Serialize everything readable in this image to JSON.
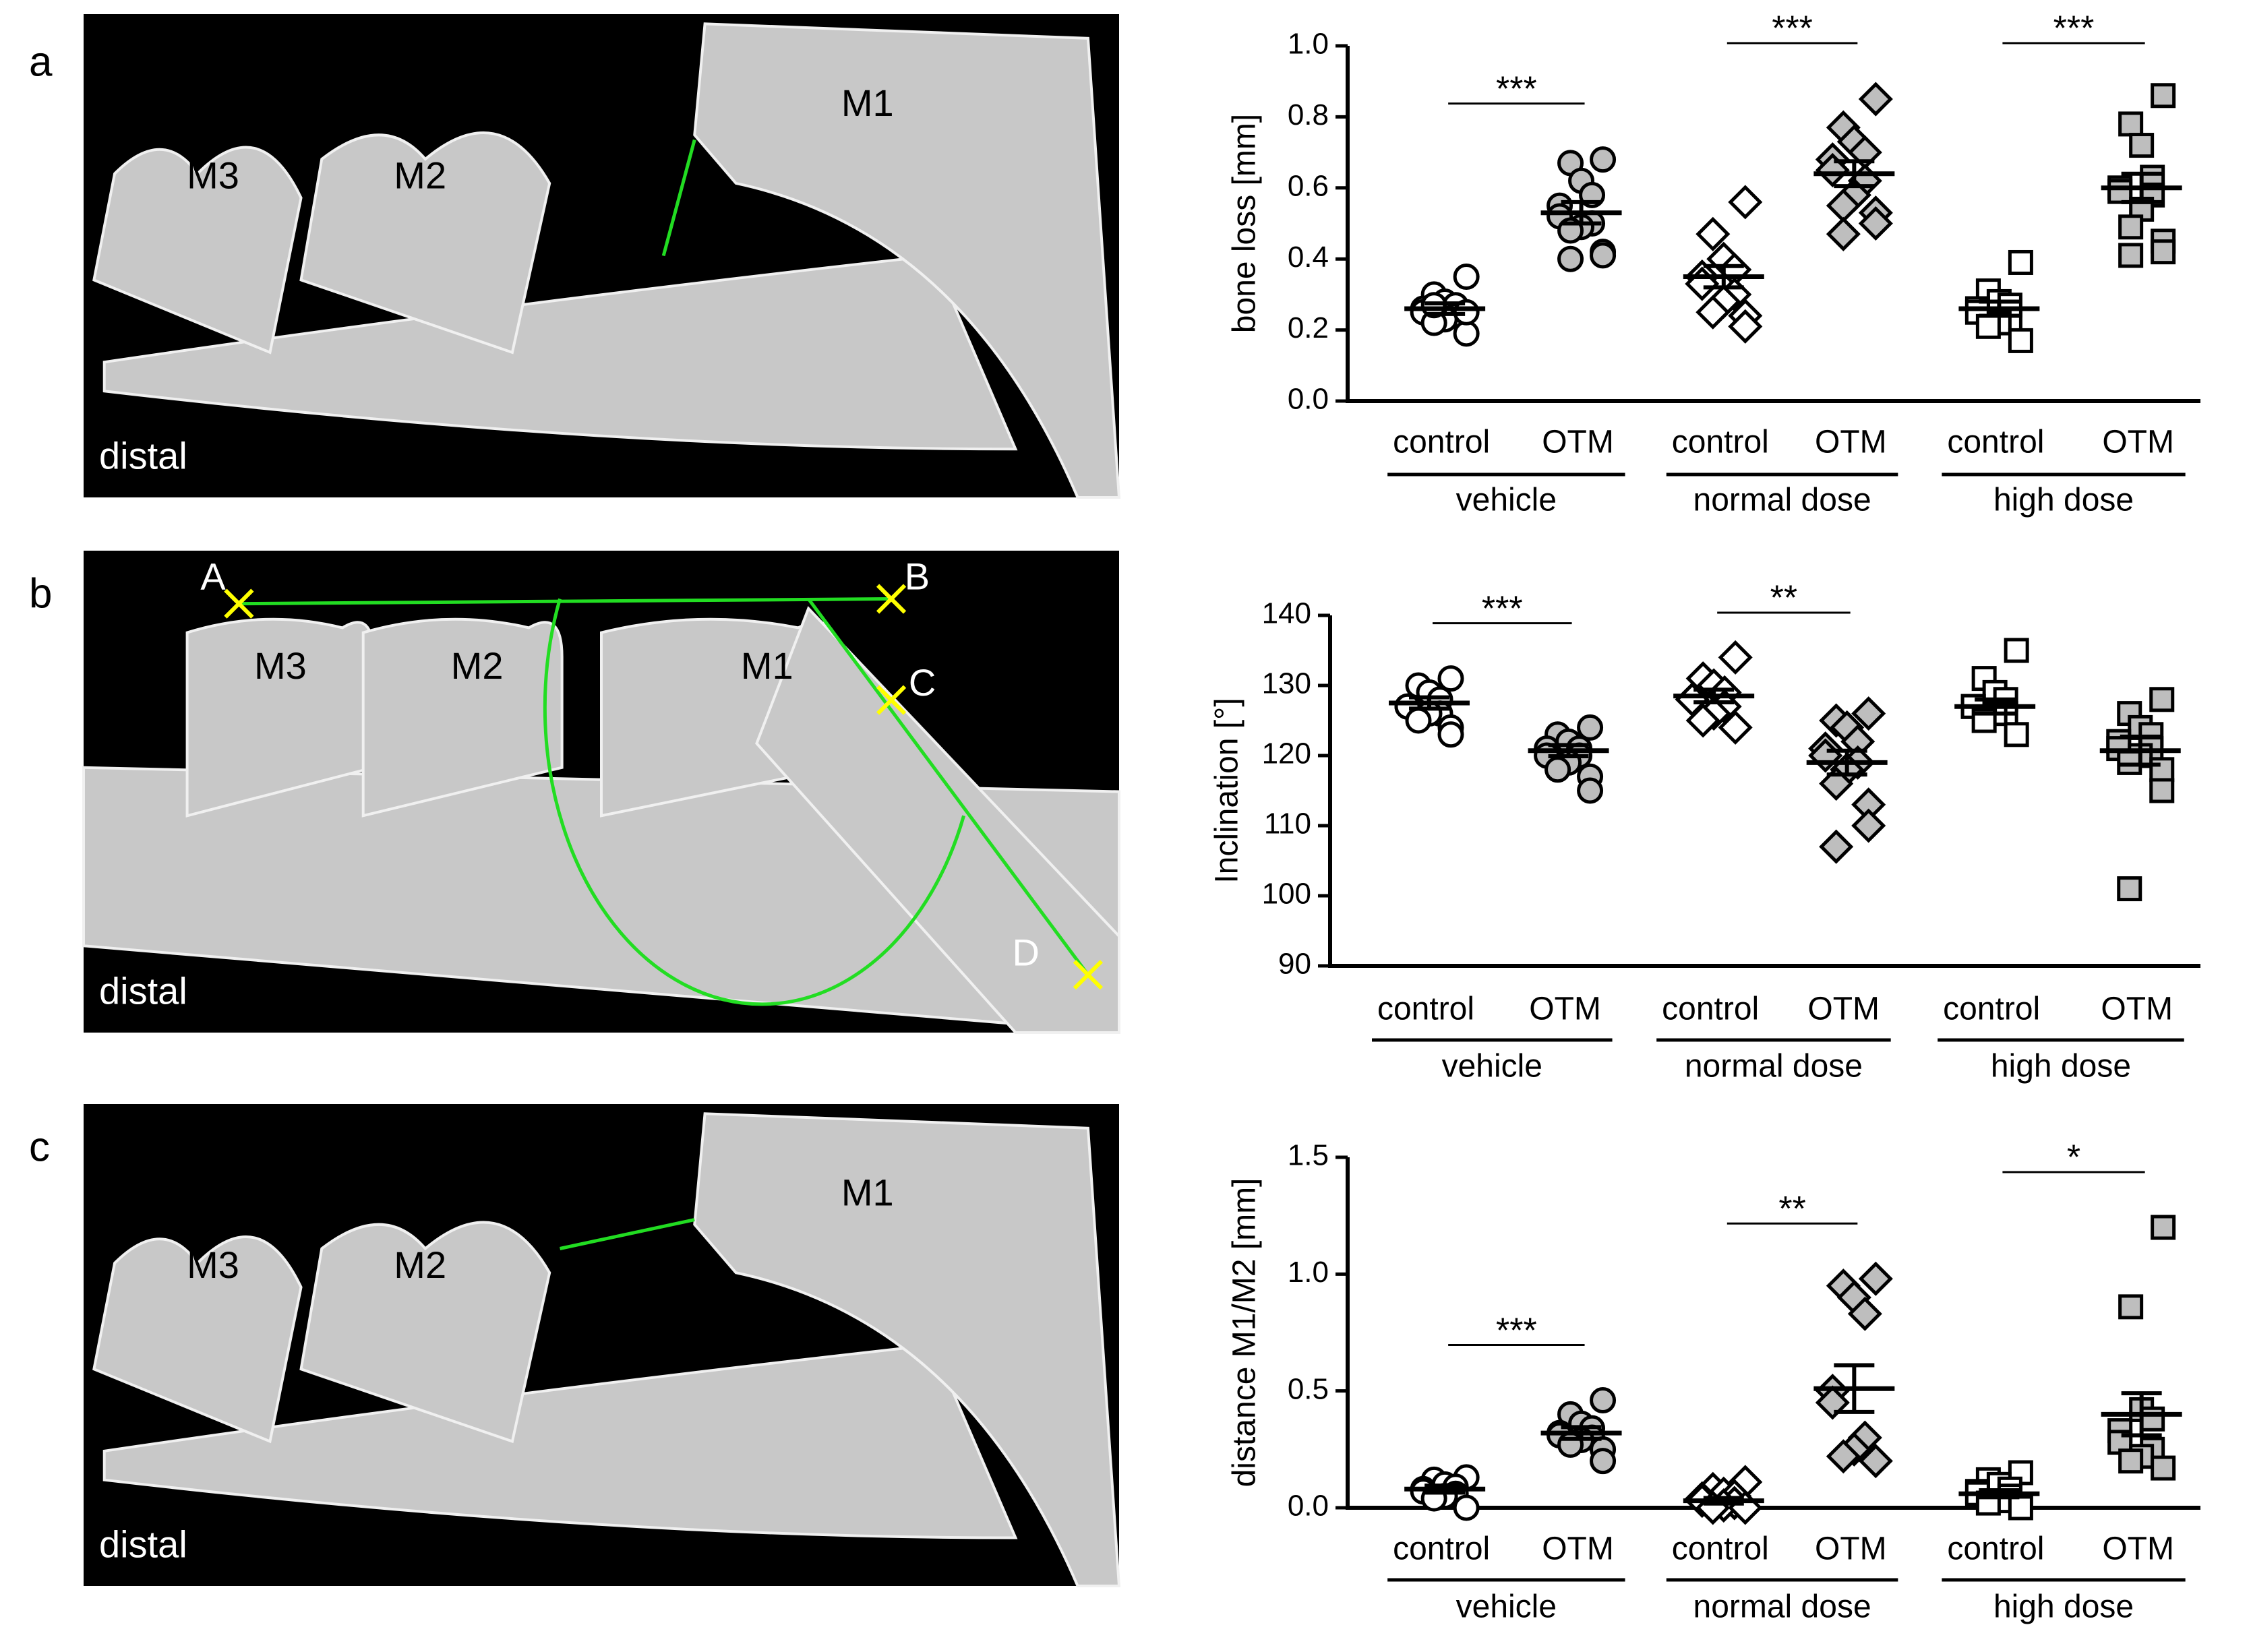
{
  "figure": {
    "panels": [
      {
        "label": "a",
        "labels": [
          "M3",
          "M2",
          "M1"
        ],
        "caption": "distal"
      },
      {
        "label": "b",
        "labels": [
          "M3",
          "M2",
          "M1",
          "A",
          "B",
          "C",
          "D"
        ],
        "caption": "distal"
      },
      {
        "label": "c",
        "labels": [
          "M3",
          "M2",
          "M1"
        ],
        "caption": "distal"
      }
    ]
  },
  "chart_data": [
    {
      "type": "scatter",
      "ylabel": "bone loss [mm]",
      "categories": [
        "control",
        "OTM",
        "control",
        "OTM",
        "control",
        "OTM"
      ],
      "groups": [
        "vehicle",
        "normal dose",
        "high dose"
      ],
      "markers": [
        "circle",
        "diamond",
        "square"
      ],
      "colors": [
        "#ffffff",
        "#bebebe",
        "#ffffff",
        "#bebebe",
        "#ffffff",
        "#bebebe"
      ],
      "ylim": [
        0,
        1
      ],
      "yticks": [
        {
          "value": 0,
          "label": "0.0"
        },
        0.2,
        0.4,
        0.6,
        0.8,
        {
          "value": 1,
          "label": "1.0"
        }
      ],
      "values": [
        [
          0.35,
          0.3,
          0.28,
          0.27,
          0.26,
          0.25,
          0.24,
          0.23,
          0.22,
          0.19,
          0.25,
          0.27
        ],
        [
          0.68,
          0.67,
          0.62,
          0.58,
          0.55,
          0.52,
          0.5,
          0.49,
          0.48,
          0.42,
          0.41,
          0.4
        ],
        [
          0.56,
          0.47,
          0.4,
          0.37,
          0.35,
          0.33,
          0.3,
          0.28,
          0.25,
          0.24,
          0.21
        ],
        [
          0.85,
          0.77,
          0.73,
          0.7,
          0.68,
          0.65,
          0.62,
          0.58,
          0.55,
          0.53,
          0.5,
          0.47
        ],
        [
          0.39,
          0.31,
          0.28,
          0.27,
          0.26,
          0.25,
          0.23,
          0.22,
          0.21,
          0.17
        ],
        [
          0.86,
          0.78,
          0.72,
          0.63,
          0.6,
          0.59,
          0.58,
          0.54,
          0.49,
          0.45,
          0.42,
          0.41
        ]
      ],
      "means": [
        0.26,
        0.53,
        0.35,
        0.64,
        0.26,
        0.6
      ],
      "errors": [
        0.015,
        0.03,
        0.03,
        0.035,
        0.02,
        0.04
      ],
      "significance": [
        "***",
        "***",
        "***"
      ]
    },
    {
      "type": "scatter",
      "ylabel": "Inclination [°]",
      "categories": [
        "control",
        "OTM",
        "control",
        "OTM",
        "control",
        "OTM"
      ],
      "groups": [
        "vehicle",
        "normal dose",
        "high dose"
      ],
      "markers": [
        "circle",
        "diamond",
        "square"
      ],
      "colors": [
        "#ffffff",
        "#bebebe",
        "#ffffff",
        "#bebebe",
        "#ffffff",
        "#bebebe"
      ],
      "ylim": [
        90,
        140
      ],
      "yticks": [
        90,
        100,
        110,
        120,
        130,
        140
      ],
      "values": [
        [
          131,
          130,
          129,
          128,
          127,
          127,
          126,
          126,
          125,
          124,
          123
        ],
        [
          124,
          123,
          122,
          121,
          121,
          120,
          120,
          119,
          118,
          117,
          115
        ],
        [
          134,
          131,
          130,
          129,
          128,
          128,
          127,
          126,
          125,
          124
        ],
        [
          126,
          125,
          124,
          122,
          121,
          120,
          119,
          118,
          116,
          113,
          110,
          107
        ],
        [
          135,
          131,
          129,
          128,
          127,
          127,
          126,
          126,
          125,
          123
        ],
        [
          128,
          126,
          124,
          123,
          122,
          121,
          121,
          120,
          119,
          118,
          115,
          101
        ]
      ],
      "means": [
        127.5,
        120.7,
        128.5,
        119,
        127,
        120.7
      ],
      "errors": [
        0.8,
        0.8,
        0.9,
        1.7,
        1,
        2
      ],
      "significance": [
        "***",
        "**",
        null
      ]
    },
    {
      "type": "scatter",
      "ylabel": "distance M1/M2 [mm]",
      "categories": [
        "control",
        "OTM",
        "control",
        "OTM",
        "control",
        "OTM"
      ],
      "groups": [
        "vehicle",
        "normal dose",
        "high dose"
      ],
      "markers": [
        "circle",
        "diamond",
        "square"
      ],
      "colors": [
        "#ffffff",
        "#bebebe",
        "#ffffff",
        "#bebebe",
        "#ffffff",
        "#bebebe"
      ],
      "ylim": [
        0,
        1.5
      ],
      "yticks": [
        {
          "value": 0,
          "label": "0.0"
        },
        0.5,
        {
          "value": 1,
          "label": "1.0"
        },
        1.5
      ],
      "values": [
        [
          0.13,
          0.12,
          0.1,
          0.09,
          0.08,
          0.07,
          0.06,
          0.05,
          0.04,
          0.0
        ],
        [
          0.46,
          0.4,
          0.36,
          0.34,
          0.32,
          0.31,
          0.3,
          0.29,
          0.27,
          0.25,
          0.2
        ],
        [
          0.11,
          0.08,
          0.06,
          0.05,
          0.04,
          0.03,
          0.02,
          0.01,
          0.0,
          0.0
        ],
        [
          0.98,
          0.95,
          0.9,
          0.83,
          0.5,
          0.45,
          0.3,
          0.25,
          0.22,
          0.2
        ],
        [
          0.15,
          0.12,
          0.1,
          0.08,
          0.07,
          0.06,
          0.05,
          0.03,
          0.02,
          0.0
        ],
        [
          1.2,
          0.86,
          0.42,
          0.38,
          0.33,
          0.28,
          0.25,
          0.22,
          0.2,
          0.17
        ]
      ],
      "means": [
        0.08,
        0.32,
        0.03,
        0.51,
        0.06,
        0.4
      ],
      "errors": [
        0.015,
        0.025,
        0.012,
        0.1,
        0.015,
        0.09
      ],
      "significance": [
        "***",
        "**",
        "*"
      ]
    }
  ]
}
